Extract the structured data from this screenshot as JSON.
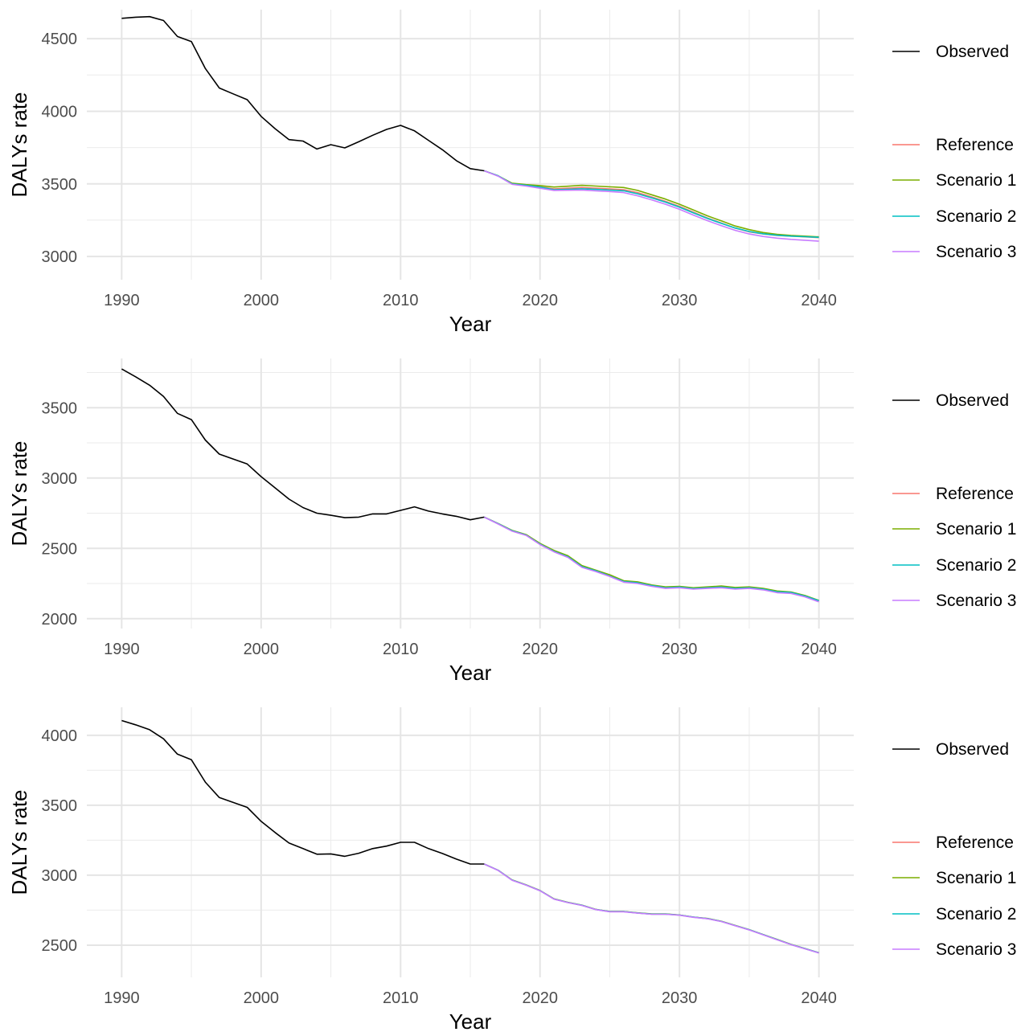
{
  "chart_data": [
    {
      "type": "line",
      "xlabel": "Year",
      "ylabel": "DALYs rate",
      "xlim": [
        1987.5,
        2042.5
      ],
      "ylim": [
        2840,
        4700
      ],
      "x_ticks": [
        1990,
        2000,
        2010,
        2020,
        2030,
        2040
      ],
      "x_tick_labels": [
        "1990",
        "2000",
        "2010",
        "2020",
        "2030",
        "2040"
      ],
      "y_ticks": [
        3000,
        3500,
        4000,
        4500
      ],
      "y_tick_labels": [
        "3000",
        "3500",
        "4000",
        "4500"
      ],
      "grid": true,
      "legend_position": "right",
      "series": [
        {
          "name": "Observed",
          "color": "#000000",
          "x": [
            1990,
            1991,
            1992,
            1993,
            1994,
            1995,
            1996,
            1997,
            1998,
            1999,
            2000,
            2001,
            2002,
            2003,
            2004,
            2005,
            2006,
            2007,
            2008,
            2009,
            2010,
            2011,
            2012,
            2013,
            2014,
            2015,
            2016
          ],
          "values": [
            4640,
            4648,
            4652,
            4625,
            4515,
            4480,
            4295,
            4160,
            4120,
            4080,
            3965,
            3880,
            3805,
            3795,
            3740,
            3770,
            3748,
            3790,
            3835,
            3875,
            3903,
            3865,
            3800,
            3735,
            3660,
            3605,
            3590
          ]
        },
        {
          "name": "Reference",
          "color": "#F8766D",
          "x": [
            2016,
            2017,
            2018,
            2019,
            2020,
            2021,
            2022,
            2023,
            2024,
            2025,
            2026,
            2027,
            2028,
            2029,
            2030,
            2031,
            2032,
            2033,
            2034,
            2035,
            2036,
            2037,
            2038,
            2039,
            2040
          ],
          "values": [
            3590,
            3555,
            3500,
            3490,
            3480,
            3465,
            3470,
            3475,
            3470,
            3465,
            3460,
            3440,
            3410,
            3380,
            3345,
            3305,
            3265,
            3230,
            3195,
            3170,
            3155,
            3145,
            3140,
            3135,
            3130
          ]
        },
        {
          "name": "Scenario 1",
          "color": "#7CAE00",
          "x": [
            2016,
            2017,
            2018,
            2019,
            2020,
            2021,
            2022,
            2023,
            2024,
            2025,
            2026,
            2027,
            2028,
            2029,
            2030,
            2031,
            2032,
            2033,
            2034,
            2035,
            2036,
            2037,
            2038,
            2039,
            2040
          ],
          "values": [
            3590,
            3555,
            3505,
            3495,
            3488,
            3478,
            3484,
            3490,
            3485,
            3480,
            3475,
            3455,
            3425,
            3395,
            3360,
            3320,
            3280,
            3245,
            3210,
            3185,
            3165,
            3152,
            3145,
            3140,
            3135
          ]
        },
        {
          "name": "Scenario 2",
          "color": "#00BFC4",
          "x": [
            2016,
            2017,
            2018,
            2019,
            2020,
            2021,
            2022,
            2023,
            2024,
            2025,
            2026,
            2027,
            2028,
            2029,
            2030,
            2031,
            2032,
            2033,
            2034,
            2035,
            2036,
            2037,
            2038,
            2039,
            2040
          ],
          "values": [
            3590,
            3555,
            3500,
            3490,
            3478,
            3460,
            3462,
            3466,
            3462,
            3457,
            3452,
            3432,
            3404,
            3374,
            3340,
            3300,
            3262,
            3228,
            3196,
            3172,
            3156,
            3146,
            3140,
            3136,
            3132
          ]
        },
        {
          "name": "Scenario 3",
          "color": "#C77CFF",
          "x": [
            2016,
            2017,
            2018,
            2019,
            2020,
            2021,
            2022,
            2023,
            2024,
            2025,
            2026,
            2027,
            2028,
            2029,
            2030,
            2031,
            2032,
            2033,
            2034,
            2035,
            2036,
            2037,
            2038,
            2039,
            2040
          ],
          "values": [
            3590,
            3553,
            3497,
            3485,
            3470,
            3455,
            3456,
            3458,
            3452,
            3447,
            3440,
            3418,
            3390,
            3360,
            3325,
            3285,
            3247,
            3212,
            3180,
            3155,
            3138,
            3126,
            3118,
            3112,
            3105
          ]
        }
      ]
    },
    {
      "type": "line",
      "xlabel": "Year",
      "ylabel": "DALYs rate",
      "xlim": [
        1987.5,
        2042.5
      ],
      "ylim": [
        1930,
        3850
      ],
      "x_ticks": [
        1990,
        2000,
        2010,
        2020,
        2030,
        2040
      ],
      "x_tick_labels": [
        "1990",
        "2000",
        "2010",
        "2020",
        "2030",
        "2040"
      ],
      "y_ticks": [
        2000,
        2500,
        3000,
        3500
      ],
      "y_tick_labels": [
        "2000",
        "2500",
        "3000",
        "3500"
      ],
      "grid": true,
      "legend_position": "right",
      "series": [
        {
          "name": "Observed",
          "color": "#000000",
          "x": [
            1990,
            1991,
            1992,
            1993,
            1994,
            1995,
            1996,
            1997,
            1998,
            1999,
            2000,
            2001,
            2002,
            2003,
            2004,
            2005,
            2006,
            2007,
            2008,
            2009,
            2010,
            2011,
            2012,
            2013,
            2014,
            2015,
            2016
          ],
          "values": [
            3775,
            3720,
            3660,
            3580,
            3460,
            3415,
            3270,
            3170,
            3135,
            3100,
            3010,
            2930,
            2850,
            2790,
            2750,
            2735,
            2718,
            2722,
            2745,
            2745,
            2770,
            2795,
            2765,
            2745,
            2728,
            2703,
            2722
          ]
        },
        {
          "name": "Reference",
          "color": "#F8766D",
          "x": [
            2016,
            2017,
            2018,
            2019,
            2020,
            2021,
            2022,
            2023,
            2024,
            2025,
            2026,
            2027,
            2028,
            2029,
            2030,
            2031,
            2032,
            2033,
            2034,
            2035,
            2036,
            2037,
            2038,
            2039,
            2040
          ],
          "values": [
            2722,
            2675,
            2625,
            2595,
            2530,
            2480,
            2440,
            2370,
            2340,
            2305,
            2265,
            2255,
            2235,
            2220,
            2225,
            2215,
            2220,
            2225,
            2215,
            2220,
            2210,
            2190,
            2185,
            2160,
            2125
          ]
        },
        {
          "name": "Scenario 1",
          "color": "#7CAE00",
          "x": [
            2016,
            2017,
            2018,
            2019,
            2020,
            2021,
            2022,
            2023,
            2024,
            2025,
            2026,
            2027,
            2028,
            2029,
            2030,
            2031,
            2032,
            2033,
            2034,
            2035,
            2036,
            2037,
            2038,
            2039,
            2040
          ],
          "values": [
            2722,
            2677,
            2628,
            2598,
            2535,
            2485,
            2448,
            2378,
            2345,
            2312,
            2270,
            2262,
            2240,
            2226,
            2230,
            2220,
            2226,
            2232,
            2222,
            2226,
            2216,
            2197,
            2190,
            2165,
            2130
          ]
        },
        {
          "name": "Scenario 2",
          "color": "#00BFC4",
          "x": [
            2016,
            2017,
            2018,
            2019,
            2020,
            2021,
            2022,
            2023,
            2024,
            2025,
            2026,
            2027,
            2028,
            2029,
            2030,
            2031,
            2032,
            2033,
            2034,
            2035,
            2036,
            2037,
            2038,
            2039,
            2040
          ],
          "values": [
            2722,
            2675,
            2625,
            2594,
            2530,
            2478,
            2440,
            2370,
            2340,
            2303,
            2264,
            2255,
            2235,
            2220,
            2225,
            2214,
            2220,
            2225,
            2215,
            2220,
            2210,
            2191,
            2186,
            2161,
            2128
          ]
        },
        {
          "name": "Scenario 3",
          "color": "#C77CFF",
          "x": [
            2016,
            2017,
            2018,
            2019,
            2020,
            2021,
            2022,
            2023,
            2024,
            2025,
            2026,
            2027,
            2028,
            2029,
            2030,
            2031,
            2032,
            2033,
            2034,
            2035,
            2036,
            2037,
            2038,
            2039,
            2040
          ],
          "values": [
            2722,
            2673,
            2622,
            2592,
            2527,
            2475,
            2436,
            2365,
            2335,
            2300,
            2260,
            2250,
            2230,
            2215,
            2220,
            2210,
            2215,
            2220,
            2210,
            2215,
            2205,
            2185,
            2180,
            2155,
            2120
          ]
        }
      ]
    },
    {
      "type": "line",
      "xlabel": "Year",
      "ylabel": "DALYs rate",
      "xlim": [
        1987.5,
        2042.5
      ],
      "ylim": [
        2270,
        4200
      ],
      "x_ticks": [
        1990,
        2000,
        2010,
        2020,
        2030,
        2040
      ],
      "x_tick_labels": [
        "1990",
        "2000",
        "2010",
        "2020",
        "2030",
        "2040"
      ],
      "y_ticks": [
        2500,
        3000,
        3500,
        4000
      ],
      "y_tick_labels": [
        "2500",
        "3000",
        "3500",
        "4000"
      ],
      "grid": true,
      "legend_position": "right",
      "series": [
        {
          "name": "Observed",
          "color": "#000000",
          "x": [
            1990,
            1991,
            1992,
            1993,
            1994,
            1995,
            1996,
            1997,
            1998,
            1999,
            2000,
            2001,
            2002,
            2003,
            2004,
            2005,
            2006,
            2007,
            2008,
            2009,
            2010,
            2011,
            2012,
            2013,
            2014,
            2015,
            2016
          ],
          "values": [
            4105,
            4075,
            4040,
            3975,
            3865,
            3825,
            3665,
            3555,
            3520,
            3485,
            3385,
            3305,
            3230,
            3190,
            3150,
            3152,
            3135,
            3157,
            3190,
            3208,
            3235,
            3235,
            3190,
            3155,
            3115,
            3080,
            3080
          ]
        },
        {
          "name": "Reference",
          "color": "#F8766D",
          "x": [
            2016,
            2017,
            2018,
            2019,
            2020,
            2021,
            2022,
            2023,
            2024,
            2025,
            2026,
            2027,
            2028,
            2029,
            2030,
            2031,
            2032,
            2033,
            2034,
            2035,
            2036,
            2037,
            2038,
            2039,
            2040
          ],
          "values": [
            3080,
            3035,
            2965,
            2930,
            2890,
            2830,
            2805,
            2785,
            2755,
            2740,
            2740,
            2730,
            2722,
            2722,
            2715,
            2700,
            2690,
            2670,
            2640,
            2610,
            2575,
            2540,
            2505,
            2475,
            2445
          ]
        },
        {
          "name": "Scenario 1",
          "color": "#7CAE00",
          "x": [
            2016,
            2017,
            2018,
            2019,
            2020,
            2021,
            2022,
            2023,
            2024,
            2025,
            2026,
            2027,
            2028,
            2029,
            2030,
            2031,
            2032,
            2033,
            2034,
            2035,
            2036,
            2037,
            2038,
            2039,
            2040
          ],
          "values": [
            3080,
            3035,
            2966,
            2931,
            2891,
            2831,
            2806,
            2786,
            2756,
            2741,
            2741,
            2731,
            2723,
            2723,
            2716,
            2701,
            2691,
            2671,
            2641,
            2611,
            2576,
            2541,
            2506,
            2476,
            2446
          ]
        },
        {
          "name": "Scenario 2",
          "color": "#00BFC4",
          "x": [
            2016,
            2017,
            2018,
            2019,
            2020,
            2021,
            2022,
            2023,
            2024,
            2025,
            2026,
            2027,
            2028,
            2029,
            2030,
            2031,
            2032,
            2033,
            2034,
            2035,
            2036,
            2037,
            2038,
            2039,
            2040
          ],
          "values": [
            3080,
            3035,
            2965,
            2930,
            2890,
            2830,
            2805,
            2785,
            2755,
            2740,
            2740,
            2730,
            2722,
            2722,
            2715,
            2700,
            2690,
            2670,
            2640,
            2610,
            2575,
            2540,
            2505,
            2475,
            2445
          ]
        },
        {
          "name": "Scenario 3",
          "color": "#C77CFF",
          "x": [
            2016,
            2017,
            2018,
            2019,
            2020,
            2021,
            2022,
            2023,
            2024,
            2025,
            2026,
            2027,
            2028,
            2029,
            2030,
            2031,
            2032,
            2033,
            2034,
            2035,
            2036,
            2037,
            2038,
            2039,
            2040
          ],
          "values": [
            3080,
            3034,
            2964,
            2929,
            2889,
            2829,
            2804,
            2784,
            2754,
            2739,
            2739,
            2729,
            2721,
            2721,
            2714,
            2699,
            2689,
            2669,
            2639,
            2609,
            2574,
            2539,
            2504,
            2474,
            2444
          ]
        }
      ]
    }
  ]
}
